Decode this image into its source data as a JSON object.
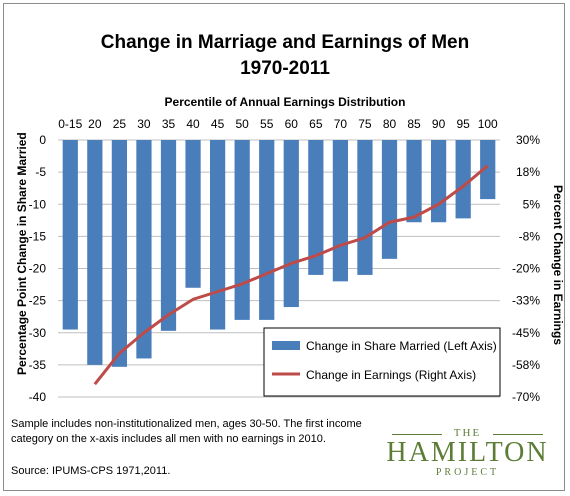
{
  "chart_data": {
    "type": "bar",
    "title": "Change in Marriage and Earnings of Men",
    "subtitle": "1970-2011",
    "xlabel": "Percentile of Annual Earnings Distribution",
    "ylabel_left": "Percentage Point Change in Share Married",
    "ylabel_right": "Percent Change in Earnings",
    "categories": [
      "0-15",
      "20",
      "25",
      "30",
      "35",
      "40",
      "45",
      "50",
      "55",
      "60",
      "65",
      "70",
      "75",
      "80",
      "85",
      "90",
      "95",
      "100"
    ],
    "y_left_ticks": [
      "0",
      "-5",
      "-10",
      "-15",
      "-20",
      "-25",
      "-30",
      "-35",
      "-40"
    ],
    "y_left_lim": [
      -40,
      0
    ],
    "y_right_ticks": [
      "30%",
      "18%",
      "5%",
      "-8%",
      "-20%",
      "-33%",
      "-45%",
      "-58%",
      "-70%"
    ],
    "y_right_lim": [
      -70,
      30
    ],
    "series": [
      {
        "name": "Change in Share Married (Left Axis)",
        "type": "bar",
        "axis": "left",
        "color": "#4a7ebb",
        "values": [
          -29.5,
          -35,
          -35.3,
          -34,
          -29.7,
          -23,
          -29.5,
          -28,
          -28,
          -26,
          -21,
          -22,
          -21,
          -18.5,
          -12.8,
          -12.8,
          -12.2,
          -9.2
        ]
      },
      {
        "name": "Change in Earnings (Right Axis)",
        "type": "line",
        "axis": "right",
        "color": "#be4b48",
        "values": [
          null,
          -65,
          -53,
          -45,
          -38,
          -32,
          -29,
          -26,
          -22,
          -18,
          -15,
          -11,
          -8,
          -2,
          0,
          5,
          12,
          20
        ]
      }
    ],
    "grid": "horizontal",
    "legend_placement": "bottom-right"
  },
  "notes": {
    "text": "Sample includes non-institutionalized men, ages 30-50. The first income category on the x-axis includes all men with no earnings in 2010.",
    "source": "Source: IPUMS-CPS 1971,2011."
  },
  "logo": {
    "the": "THE",
    "main": "HAMILTON",
    "project": "PROJECT"
  }
}
